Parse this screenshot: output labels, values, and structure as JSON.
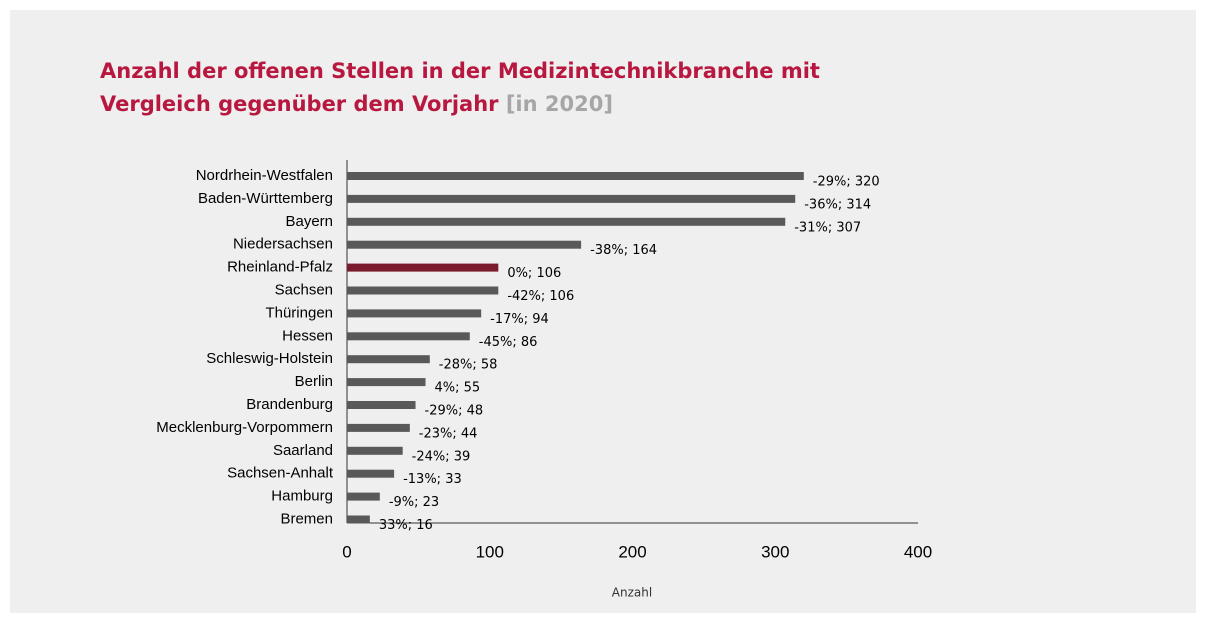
{
  "chart_data": {
    "type": "barh",
    "title": "Anzahl der offenen Stellen in der Medizintechnikbranche mit Vergleich gegenüber dem Vorjahr",
    "subtitle": "[in 2020]",
    "x_label": "Anzahl",
    "categories": [
      "Nordrhein-Westfalen",
      "Baden-Württemberg",
      "Bayern",
      "Niedersachsen",
      "Rheinland-Pfalz",
      "Sachsen",
      "Thüringen",
      "Hessen",
      "Schleswig-Holstein",
      "Berlin",
      "Brandenburg",
      "Mecklenburg-Vorpommern",
      "Saarland",
      "Sachsen-Anhalt",
      "Hamburg",
      "Bremen"
    ],
    "values": [
      320,
      314,
      307,
      164,
      106,
      106,
      94,
      86,
      58,
      55,
      48,
      44,
      39,
      33,
      23,
      16
    ],
    "value_labels": [
      "-29%; 320",
      "-36%; 314",
      "-31%; 307",
      "-38%; 164",
      "0%; 106",
      "-42%; 106",
      "-17%; 94",
      "-45%; 86",
      "-28%; 58",
      "4%; 55",
      "-29%; 48",
      "-23%; 44",
      "-24%; 39",
      "-13%; 33",
      "-9%; 23",
      "33%; 16"
    ],
    "colors": [
      "#595959",
      "#595959",
      "#595959",
      "#595959",
      "#7b1c2e",
      "#595959",
      "#595959",
      "#595959",
      "#595959",
      "#595959",
      "#595959",
      "#595959",
      "#595959",
      "#595959",
      "#595959",
      "#595959"
    ],
    "xlim": [
      0,
      400
    ],
    "xticks": [
      0,
      100,
      200,
      300,
      400
    ]
  }
}
